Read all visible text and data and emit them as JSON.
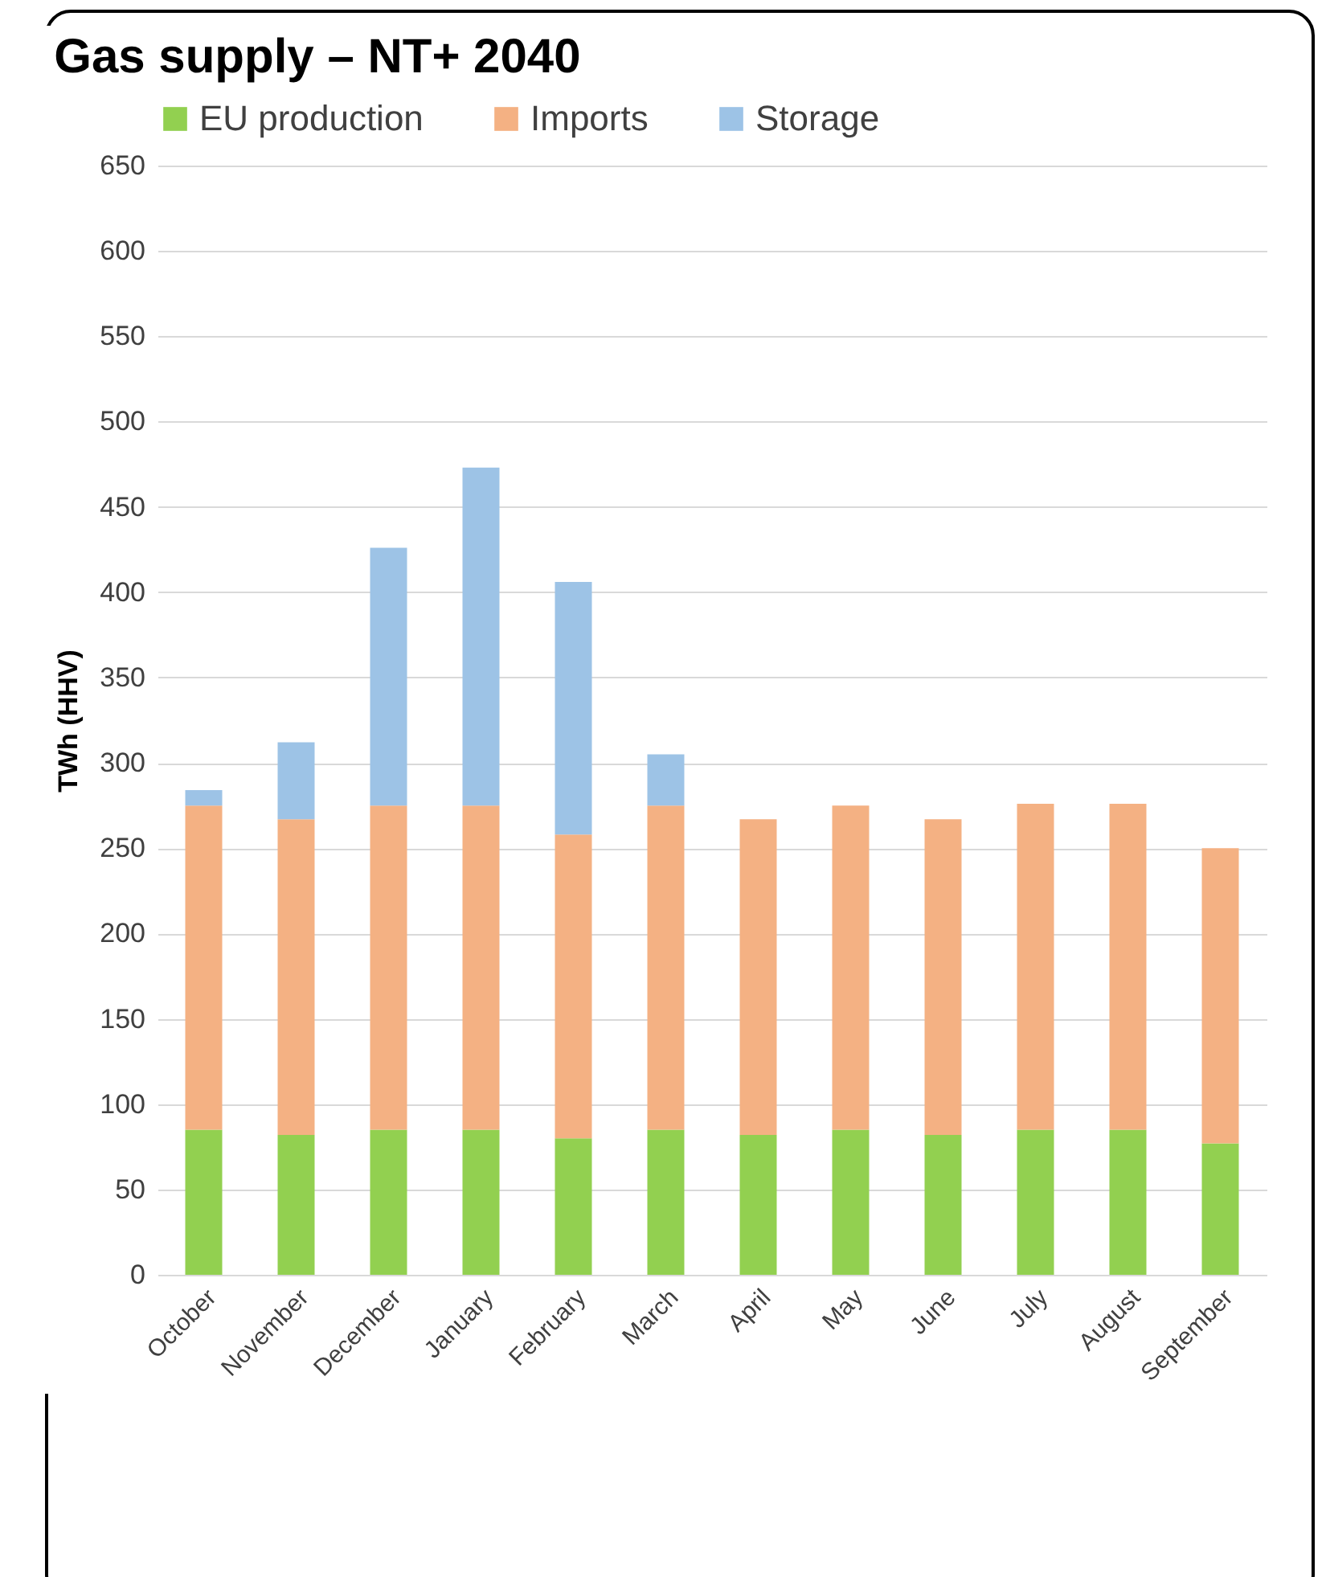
{
  "chart_data": {
    "type": "bar",
    "title": "Gas supply – NT+ 2040",
    "ylabel": "TWh (HHV)",
    "categories": [
      "October",
      "November",
      "December",
      "January",
      "February",
      "March",
      "April",
      "May",
      "June",
      "July",
      "August",
      "September"
    ],
    "series": [
      {
        "name": "EU production",
        "color": "#92d050",
        "values": [
          85,
          82,
          85,
          85,
          80,
          85,
          82,
          85,
          82,
          85,
          85,
          77
        ]
      },
      {
        "name": "Imports",
        "color": "#f4b183",
        "values": [
          190,
          185,
          190,
          190,
          178,
          190,
          185,
          190,
          185,
          191,
          191,
          173
        ]
      },
      {
        "name": "Storage",
        "color": "#9dc3e6",
        "values": [
          9,
          45,
          151,
          198,
          148,
          30,
          null,
          null,
          null,
          null,
          null,
          null
        ]
      }
    ],
    "stacked": true,
    "ylim": [
      0,
      650
    ],
    "yticks": [
      0,
      50,
      100,
      150,
      200,
      250,
      300,
      350,
      400,
      450,
      500,
      550,
      600,
      650
    ],
    "grid": "y",
    "legend": "top"
  }
}
